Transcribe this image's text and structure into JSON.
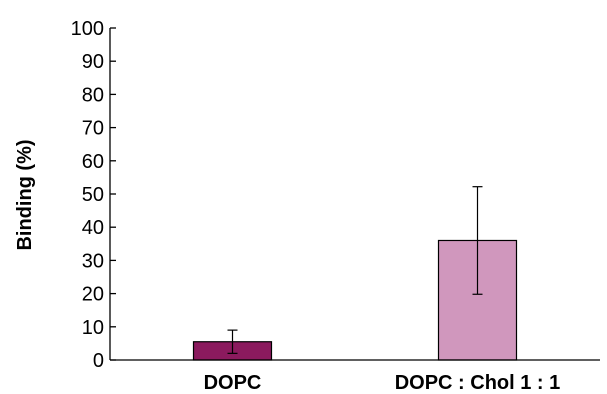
{
  "chart_data": {
    "type": "bar",
    "title": "",
    "xlabel": "",
    "ylabel": "Binding (%)",
    "ylim": [
      0,
      100
    ],
    "yticks": [
      0,
      10,
      20,
      30,
      40,
      50,
      60,
      70,
      80,
      90,
      100
    ],
    "categories": [
      "DOPC",
      "DOPC : Chol 1 : 1"
    ],
    "values": [
      5.5,
      36
    ],
    "errors": [
      3.5,
      16.2
    ],
    "colors": [
      "#8b1a5e",
      "#d097bd"
    ],
    "grid": false,
    "legend": "none"
  }
}
